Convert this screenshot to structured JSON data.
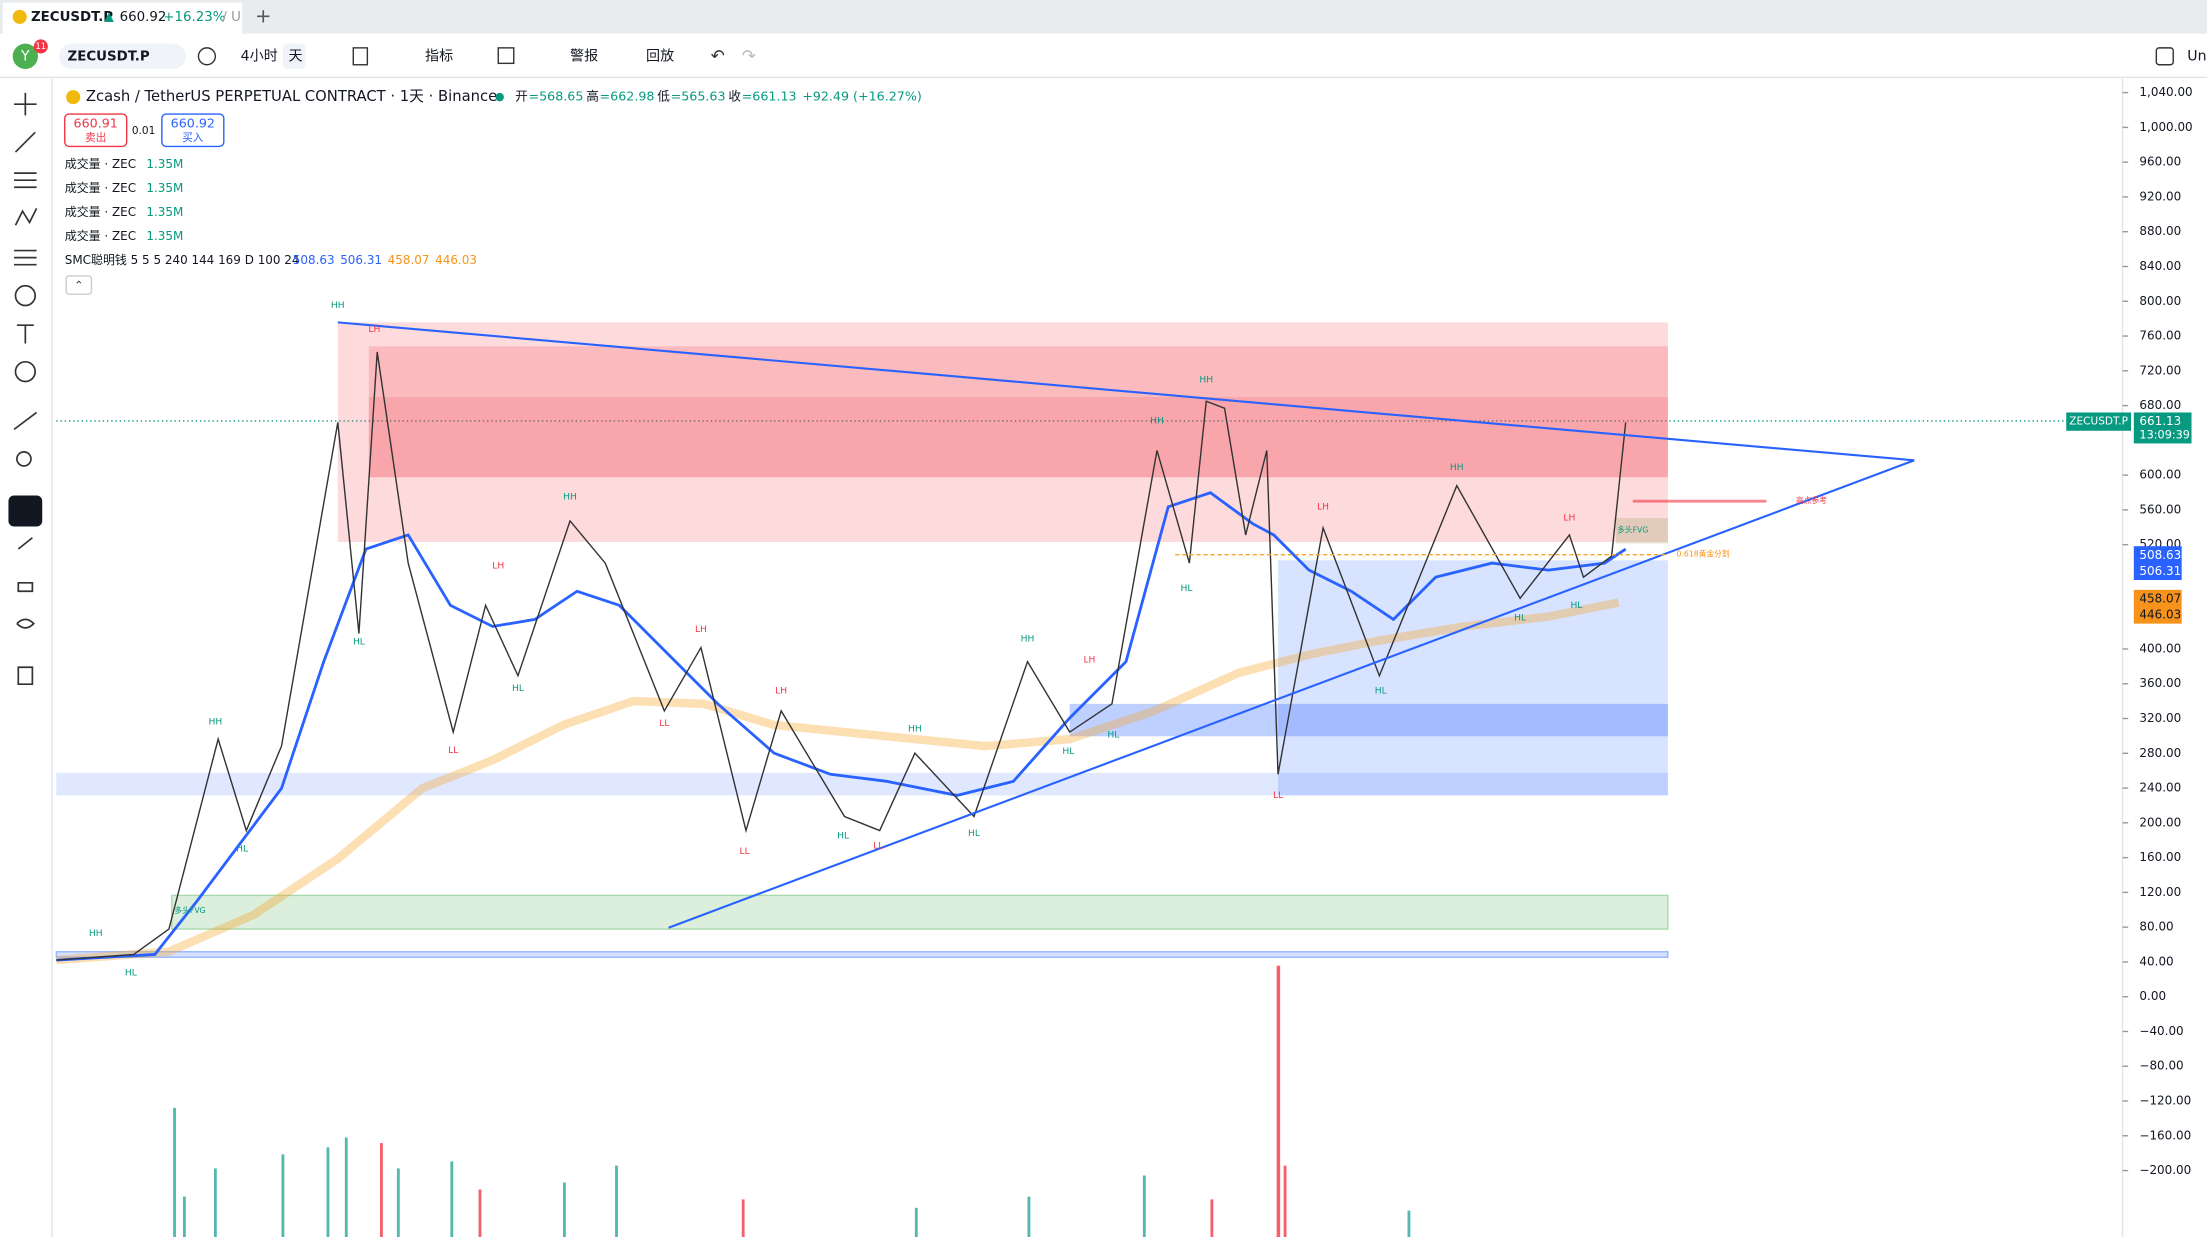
{
  "tab": {
    "symbol": "ZECUSDT.P",
    "arrow": "▲",
    "price": "660.92",
    "change": "+16.23%",
    "rest": "/ U"
  },
  "toolbar": {
    "avatar": "Y",
    "badge": "11",
    "symbol": "ZECUSDT.P",
    "interval": "4小时",
    "period": "天",
    "indicators": "指标",
    "alert": "警报",
    "replay": "回放",
    "right": "Un"
  },
  "legend": {
    "title": "Zcash / TetherUS PERPETUAL CONTRACT · 1天 · Binance",
    "ohlc": [
      {
        "label": "开",
        "value": "=568.65"
      },
      {
        "label": "高",
        "value": "=662.98"
      },
      {
        "label": "低",
        "value": "=565.63"
      },
      {
        "label": "收",
        "value": "=661.13"
      }
    ],
    "change": "+92.49 (+16.27%)"
  },
  "sell": {
    "price": "660.91",
    "label": "卖出"
  },
  "spread": "0.01",
  "buy": {
    "price": "660.92",
    "label": "买入"
  },
  "volumes": [
    {
      "label": "成交量 · ZEC",
      "value": "1.35M"
    },
    {
      "label": "成交量 · ZEC",
      "value": "1.35M"
    },
    {
      "label": "成交量 · ZEC",
      "value": "1.35M"
    },
    {
      "label": "成交量 · ZEC",
      "value": "1.35M"
    }
  ],
  "smc": {
    "label": "SMC聪明钱 5 5 5 240 144 169 D 100 24",
    "values": [
      "508.63",
      "506.31",
      "458.07",
      "446.03"
    ]
  },
  "price_axis": {
    "ticks": [
      {
        "value": 1040,
        "label": "1,040.00"
      },
      {
        "value": 1000,
        "label": "1,000.00"
      },
      {
        "value": 960,
        "label": "960.00"
      },
      {
        "value": 920,
        "label": "920.00"
      },
      {
        "value": 880,
        "label": "880.00"
      },
      {
        "value": 840,
        "label": "840.00"
      },
      {
        "value": 800,
        "label": "800.00"
      },
      {
        "value": 760,
        "label": "760.00"
      },
      {
        "value": 720,
        "label": "720.00"
      },
      {
        "value": 680,
        "label": "680.00"
      },
      {
        "value": 600,
        "label": "600.00"
      },
      {
        "value": 560,
        "label": "560.00"
      },
      {
        "value": 520,
        "label": "520.00"
      },
      {
        "value": 400,
        "label": "400.00"
      },
      {
        "value": 360,
        "label": "360.00"
      },
      {
        "value": 320,
        "label": "320.00"
      },
      {
        "value": 280,
        "label": "280.00"
      },
      {
        "value": 240,
        "label": "240.00"
      },
      {
        "value": 200,
        "label": "200.00"
      },
      {
        "value": 160,
        "label": "160.00"
      },
      {
        "value": 120,
        "label": "120.00"
      },
      {
        "value": 80,
        "label": "80.00"
      },
      {
        "value": 40,
        "label": "40.00"
      },
      {
        "value": 0,
        "label": "0.00"
      },
      {
        "value": -40,
        "label": "−40.00"
      },
      {
        "value": -80,
        "label": "−80.00"
      },
      {
        "value": -120,
        "label": "−120.00"
      },
      {
        "value": -160,
        "label": "−160.00"
      },
      {
        "value": -200,
        "label": "−200.00"
      }
    ]
  },
  "price_tags": {
    "symbol": "ZECUSDT.P",
    "last": "661.13",
    "countdown": "13:09:39",
    "blue": [
      "508.63",
      "506.31"
    ],
    "orange": [
      "458.07",
      "446.03"
    ]
  },
  "structure_labels": [
    "HH",
    "LH",
    "HH",
    "HL",
    "HL",
    "LL",
    "HH",
    "HL",
    "LH",
    "HL",
    "HH",
    "LL",
    "LH",
    "LH",
    "LL",
    "HL",
    "LL",
    "HH",
    "HL",
    "HL",
    "HH",
    "LH",
    "HL",
    "HH",
    "HH",
    "HL",
    "LH",
    "LL",
    "HH",
    "HL",
    "HL",
    "LH",
    "HL"
  ],
  "annotations": [
    "多头FVG",
    "多头FVG",
    "0.618黄金分割",
    "高点参考"
  ]
}
